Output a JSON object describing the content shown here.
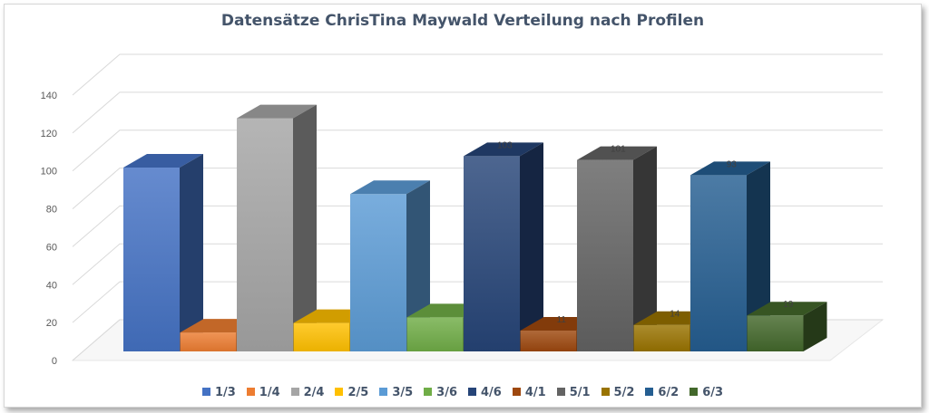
{
  "chart_data": {
    "type": "bar",
    "title": "Datensätze ChrisTina Maywald Verteilung nach Profilen",
    "xlabel": "",
    "ylabel": "",
    "ylim": [
      0,
      140
    ],
    "yticks": [
      0,
      20,
      40,
      60,
      80,
      100,
      120,
      140
    ],
    "grid": true,
    "legend_position": "bottom",
    "categories": [
      "1/3",
      "1/4",
      "2/4",
      "2/5",
      "3/5",
      "3/6",
      "4/6",
      "4/1",
      "5/1",
      "5/2",
      "6/2",
      "6/3"
    ],
    "values": [
      97,
      10,
      123,
      15,
      83,
      18,
      103,
      11,
      101,
      14,
      93,
      19
    ],
    "data_labels": [
      "",
      "",
      "",
      "",
      "",
      "",
      "103",
      "11",
      "101",
      "14",
      "93",
      "19"
    ],
    "colors": [
      "#4472c4",
      "#ed7d31",
      "#a5a5a5",
      "#ffc000",
      "#5b9bd5",
      "#70ad47",
      "#264478",
      "#9e480e",
      "#636363",
      "#997300",
      "#255e91",
      "#43682b"
    ]
  }
}
